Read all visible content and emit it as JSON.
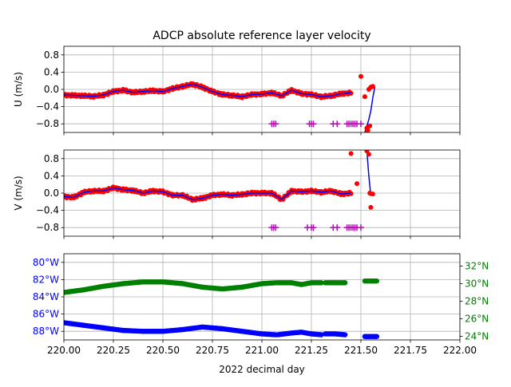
{
  "figure": {
    "title": "ADCP absolute reference layer velocity",
    "xlabel": "2022 decimal day"
  },
  "colors": {
    "raw_points": "#ff0000",
    "smoothed_line": "#0000ff",
    "flag_markers": "#bf00bf",
    "lon_series": "#0000ff",
    "lat_series": "#008000",
    "lon_axis_labels": "#0000ff",
    "lat_axis_labels": "#008000",
    "grid": "#b0b0b0"
  },
  "chart_data": [
    {
      "type": "scatter",
      "panel": "u",
      "ylabel": "U (m/s)",
      "xlim": [
        220.0,
        222.0
      ],
      "ylim": [
        -1.0,
        1.0
      ],
      "yticks": [
        -0.8,
        -0.4,
        0.0,
        0.4,
        0.8
      ],
      "ytick_labels": [
        "−0.8",
        "−0.4",
        "0.0",
        "0.4",
        "0.8"
      ],
      "grid": true,
      "series": [
        {
          "kind": "line+points",
          "x": [
            220.0,
            220.05,
            220.1,
            220.15,
            220.2,
            220.25,
            220.3,
            220.35,
            220.4,
            220.45,
            220.5,
            220.55,
            220.6,
            220.65,
            220.7,
            220.75,
            220.8,
            220.85,
            220.9,
            220.95,
            221.0,
            221.05,
            221.1,
            221.15,
            221.2,
            221.25,
            221.3,
            221.35,
            221.4,
            221.45
          ],
          "y": [
            -0.13,
            -0.14,
            -0.15,
            -0.16,
            -0.13,
            -0.05,
            -0.02,
            -0.07,
            -0.05,
            -0.03,
            -0.05,
            0.02,
            0.07,
            0.12,
            0.05,
            -0.05,
            -0.12,
            -0.14,
            -0.17,
            -0.12,
            -0.11,
            -0.08,
            -0.15,
            -0.02,
            -0.1,
            -0.12,
            -0.17,
            -0.15,
            -0.1,
            -0.08
          ]
        },
        {
          "kind": "line",
          "x": [
            221.52,
            221.53,
            221.54,
            221.55,
            221.56,
            221.57
          ],
          "y": [
            -1.0,
            -0.85,
            -0.7,
            -0.5,
            -0.2,
            0.05
          ]
        },
        {
          "kind": "outliers",
          "x": [
            221.5,
            221.52,
            221.53,
            221.535,
            221.54,
            221.55,
            221.56,
            221.545
          ],
          "y": [
            0.3,
            -0.17,
            -0.9,
            -0.95,
            0.0,
            0.05,
            0.07,
            -0.85
          ]
        },
        {
          "kind": "flags",
          "x": [
            221.05,
            221.06,
            221.07,
            221.24,
            221.25,
            221.26,
            221.36,
            221.38,
            221.43,
            221.44,
            221.45,
            221.46,
            221.47,
            221.48,
            221.5
          ],
          "y": [
            -0.8,
            -0.8,
            -0.8,
            -0.8,
            -0.8,
            -0.8,
            -0.8,
            -0.8,
            -0.8,
            -0.8,
            -0.8,
            -0.8,
            -0.8,
            -0.8,
            -0.8
          ]
        }
      ]
    },
    {
      "type": "scatter",
      "panel": "v",
      "ylabel": "V (m/s)",
      "xlim": [
        220.0,
        222.0
      ],
      "ylim": [
        -1.0,
        1.0
      ],
      "yticks": [
        -0.8,
        -0.4,
        0.0,
        0.4,
        0.8
      ],
      "ytick_labels": [
        "−0.8",
        "−0.4",
        "0.0",
        "0.4",
        "0.8"
      ],
      "grid": true,
      "series": [
        {
          "kind": "line+points",
          "x": [
            220.0,
            220.05,
            220.1,
            220.15,
            220.2,
            220.25,
            220.3,
            220.35,
            220.4,
            220.45,
            220.5,
            220.55,
            220.6,
            220.65,
            220.7,
            220.75,
            220.8,
            220.85,
            220.9,
            220.95,
            221.0,
            221.05,
            221.1,
            221.15,
            221.2,
            221.25,
            221.3,
            221.35,
            221.4,
            221.45
          ],
          "y": [
            -0.08,
            -0.1,
            0.02,
            0.05,
            0.05,
            0.12,
            0.08,
            0.06,
            0.0,
            0.05,
            0.03,
            -0.05,
            -0.05,
            -0.15,
            -0.12,
            -0.05,
            -0.03,
            -0.05,
            -0.03,
            0.0,
            0.0,
            0.0,
            -0.15,
            0.05,
            0.03,
            0.05,
            0.02,
            0.05,
            -0.02,
            0.0
          ]
        },
        {
          "kind": "line",
          "x": [
            221.53,
            221.54,
            221.55,
            221.56
          ],
          "y": [
            1.0,
            0.4,
            -0.05,
            -0.02
          ]
        },
        {
          "kind": "outliers",
          "x": [
            221.45,
            221.48,
            221.53,
            221.54,
            221.545,
            221.55,
            221.56
          ],
          "y": [
            0.92,
            0.22,
            0.98,
            0.9,
            0.0,
            -0.33,
            -0.02
          ]
        },
        {
          "kind": "flags",
          "x": [
            221.05,
            221.06,
            221.07,
            221.23,
            221.25,
            221.26,
            221.36,
            221.38,
            221.43,
            221.44,
            221.45,
            221.46,
            221.47,
            221.48,
            221.5
          ],
          "y": [
            -0.8,
            -0.8,
            -0.8,
            -0.8,
            -0.8,
            -0.8,
            -0.8,
            -0.8,
            -0.8,
            -0.8,
            -0.8,
            -0.8,
            -0.8,
            -0.8,
            -0.8
          ]
        }
      ]
    },
    {
      "type": "scatter",
      "panel": "position",
      "xlim": [
        220.0,
        222.0
      ],
      "xticks": [
        220.0,
        220.25,
        220.5,
        220.75,
        221.0,
        221.25,
        221.5,
        221.75,
        222.0
      ],
      "xtick_labels": [
        "220.00",
        "220.25",
        "220.50",
        "220.75",
        "221.00",
        "221.25",
        "221.50",
        "221.75",
        "222.00"
      ],
      "grid": true,
      "left_axis": {
        "name": "longitude",
        "ylim": [
          -89,
          -79
        ],
        "yticks": [
          -88,
          -86,
          -84,
          -82,
          -80
        ],
        "ytick_labels": [
          "88°W",
          "86°W",
          "84°W",
          "82°W",
          "80°W"
        ]
      },
      "right_axis": {
        "name": "latitude",
        "ylim": [
          23.6,
          33.4
        ],
        "yticks": [
          24,
          26,
          28,
          30,
          32
        ],
        "ytick_labels": [
          "24°N",
          "26°N",
          "28°N",
          "30°N",
          "32°N"
        ]
      },
      "series": [
        {
          "axis": "left",
          "segments": [
            {
              "x": [
                220.0,
                220.1,
                220.2,
                220.3,
                220.4,
                220.5,
                220.6,
                220.7,
                220.8,
                220.9,
                221.0,
                221.07
              ],
              "y": [
                -87.0,
                -87.3,
                -87.6,
                -87.9,
                -88.0,
                -88.0,
                -87.8,
                -87.5,
                -87.7,
                -88.0,
                -88.3,
                -88.4
              ]
            },
            {
              "x": [
                221.08,
                221.15,
                221.2,
                221.25,
                221.3
              ],
              "y": [
                -88.4,
                -88.2,
                -88.1,
                -88.3,
                -88.4
              ]
            },
            {
              "x": [
                221.32,
                221.37,
                221.42
              ],
              "y": [
                -88.3,
                -88.3,
                -88.4
              ]
            },
            {
              "x": [
                221.52,
                221.58
              ],
              "y": [
                -88.6,
                -88.6
              ]
            }
          ]
        },
        {
          "axis": "right",
          "segments": [
            {
              "x": [
                220.0,
                220.1,
                220.2,
                220.3,
                220.4,
                220.5,
                220.6,
                220.7,
                220.8,
                220.9,
                221.0,
                221.07
              ],
              "y": [
                29.0,
                29.3,
                29.7,
                30.0,
                30.2,
                30.2,
                30.0,
                29.6,
                29.4,
                29.6,
                30.0,
                30.1
              ]
            },
            {
              "x": [
                221.08,
                221.15,
                221.2,
                221.25,
                221.3
              ],
              "y": [
                30.1,
                30.1,
                29.9,
                30.1,
                30.1
              ]
            },
            {
              "x": [
                221.32,
                221.37,
                221.42
              ],
              "y": [
                30.1,
                30.1,
                30.1
              ]
            },
            {
              "x": [
                221.52,
                221.58
              ],
              "y": [
                30.3,
                30.3
              ]
            }
          ]
        }
      ]
    }
  ]
}
